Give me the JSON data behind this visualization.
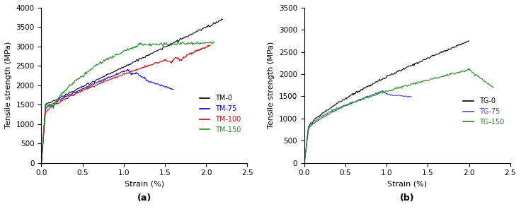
{
  "chart_a": {
    "title": "(a)",
    "xlabel": "Strain (%)",
    "ylabel": "Tensile strength (MPa)",
    "xlim": [
      0,
      2.5
    ],
    "ylim": [
      0,
      4000
    ],
    "yticks": [
      0,
      500,
      1000,
      1500,
      2000,
      2500,
      3000,
      3500,
      4000
    ],
    "xticks": [
      0,
      0.5,
      1.0,
      1.5,
      2.0,
      2.5
    ],
    "legend": [
      "TM-0",
      "TM-75",
      "TM-100",
      "TM-150"
    ],
    "legend_colors": [
      "black",
      "#0000FF",
      "#FF0000",
      "#008000"
    ]
  },
  "chart_b": {
    "title": "(b)",
    "xlabel": "Strain (%)",
    "ylabel": "Tensile strength (MPa)",
    "xlim": [
      0,
      2.5
    ],
    "ylim": [
      0,
      3500
    ],
    "yticks": [
      0,
      500,
      1000,
      1500,
      2000,
      2500,
      3000,
      3500
    ],
    "xticks": [
      0,
      0.5,
      1.0,
      1.5,
      2.0,
      2.5
    ],
    "legend": [
      "TG-0",
      "TG-75",
      "TG-150"
    ],
    "legend_colors": [
      "black",
      "#4444FF",
      "#228B22"
    ]
  }
}
